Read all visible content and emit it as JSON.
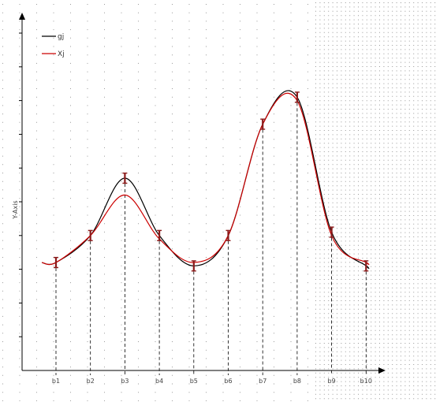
{
  "chart_data": {
    "type": "line",
    "title": "",
    "xlabel": "",
    "ylabel": "Y-Axis",
    "categories": [
      "b1",
      "b2",
      "b3",
      "b4",
      "b5",
      "b6",
      "b7",
      "b8",
      "b9",
      "b10"
    ],
    "ylim": [
      0,
      10
    ],
    "grid": "dotted",
    "legend_position": "top-left",
    "series": [
      {
        "name": "gj",
        "color": "#000000",
        "values": [
          3.2,
          4.0,
          5.7,
          4.0,
          3.1,
          4.0,
          7.3,
          8.1,
          4.1,
          3.1
        ]
      },
      {
        "name": "Xj",
        "color": "#cc0000",
        "values": [
          3.2,
          4.0,
          5.2,
          3.9,
          3.2,
          4.0,
          7.3,
          8.0,
          4.0,
          3.2
        ]
      }
    ],
    "markers": {
      "color": "#8b1a1a",
      "values": [
        3.2,
        4.0,
        5.7,
        4.0,
        3.1,
        4.0,
        7.3,
        8.1,
        4.1,
        3.1
      ],
      "error": 0.15
    }
  }
}
